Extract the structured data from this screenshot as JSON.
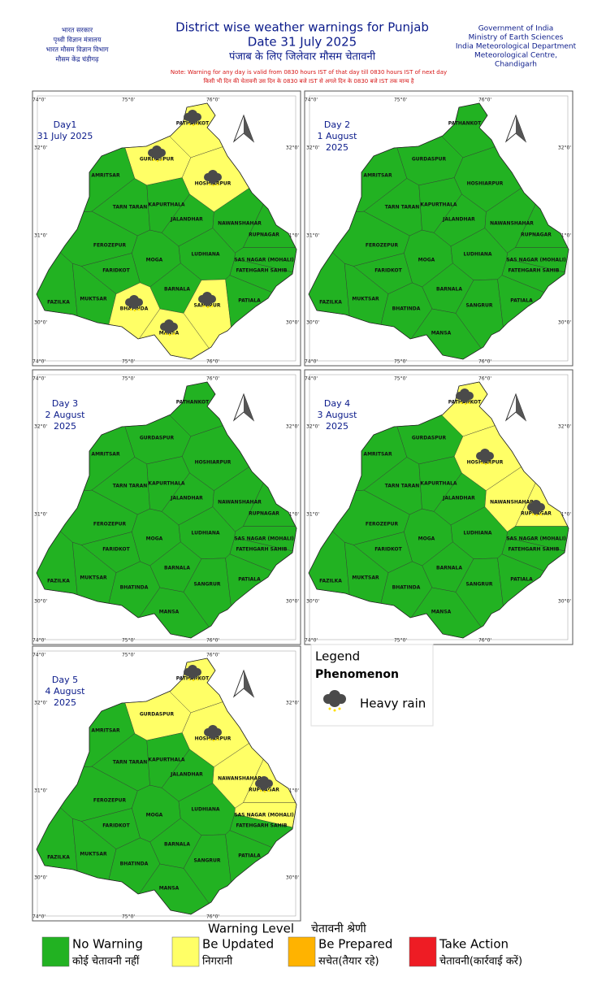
{
  "header": {
    "left": [
      "भारत सरकार",
      "पृथ्वी विज्ञान मंत्रालय",
      "भारत मौसम विज्ञान विभाग",
      "मौसम केंद्र चंडीगढ़"
    ],
    "title": [
      "District wise weather warnings for Punjab",
      "Date 31 July 2025",
      "पंजाब के लिए जिलेवार मौसम चेतावनी"
    ],
    "notes": [
      "Note: Warning for any day is valid from 0830 hours IST of that day till 0830 hours IST of next day",
      "किसी भी दिन की चेतावनी उस दिन के 0830 बजे IST से अगले दिन के 0830 बजे IST तक मान्य है"
    ],
    "right": [
      "Government of India",
      "Ministry of Earth Sciences",
      "India Meteorological Department",
      "Meteorological Centre,",
      "Chandigarh"
    ]
  },
  "districts": [
    "PATHANKOT",
    "GURDASPUR",
    "AMRITSAR",
    "HOSHIARPUR",
    "TARN TARAN",
    "KAPURTHALA",
    "JALANDHAR",
    "NAWANSHAHAR",
    "RUPNAGAR",
    "FEROZEPUR",
    "MOGA",
    "LUDHIANA",
    "SAS NAGAR (MOHALI)",
    "FATEHGARH SAHIB",
    "FARIDKOT",
    "BARNALA",
    "FAZILKA",
    "MUKTSAR",
    "BHATINDA",
    "SANGRUR",
    "PATIALA",
    "MANSA"
  ],
  "graticule": {
    "lon": [
      "74°0'",
      "75°0'",
      "76°0'"
    ],
    "lat": [
      "32°0'",
      "31°0'",
      "30°0'"
    ]
  },
  "panels": [
    {
      "title": [
        "Day1",
        "31 July 2025"
      ],
      "district_colors": [
        "#ffff66",
        "#ffff66",
        "#22b222",
        "#ffff66",
        "#22b222",
        "#22b222",
        "#22b222",
        "#22b222",
        "#22b222",
        "#22b222",
        "#22b222",
        "#22b222",
        "#22b222",
        "#22b222",
        "#22b222",
        "#22b222",
        "#22b222",
        "#22b222",
        "#ffff66",
        "#ffff66",
        "#22b222",
        "#ffff66"
      ],
      "heavy_rain": [
        true,
        true,
        false,
        true,
        false,
        false,
        false,
        false,
        false,
        false,
        false,
        false,
        false,
        false,
        false,
        false,
        false,
        false,
        true,
        true,
        false,
        true
      ]
    },
    {
      "title": [
        "Day 2",
        "1 August",
        "2025"
      ],
      "district_colors": [
        "#22b222",
        "#22b222",
        "#22b222",
        "#22b222",
        "#22b222",
        "#22b222",
        "#22b222",
        "#22b222",
        "#22b222",
        "#22b222",
        "#22b222",
        "#22b222",
        "#22b222",
        "#22b222",
        "#22b222",
        "#22b222",
        "#22b222",
        "#22b222",
        "#22b222",
        "#22b222",
        "#22b222",
        "#22b222"
      ],
      "heavy_rain": [
        false,
        false,
        false,
        false,
        false,
        false,
        false,
        false,
        false,
        false,
        false,
        false,
        false,
        false,
        false,
        false,
        false,
        false,
        false,
        false,
        false,
        false
      ]
    },
    {
      "title": [
        "Day 3",
        "2 August",
        "2025"
      ],
      "district_colors": [
        "#22b222",
        "#22b222",
        "#22b222",
        "#22b222",
        "#22b222",
        "#22b222",
        "#22b222",
        "#22b222",
        "#22b222",
        "#22b222",
        "#22b222",
        "#22b222",
        "#22b222",
        "#22b222",
        "#22b222",
        "#22b222",
        "#22b222",
        "#22b222",
        "#22b222",
        "#22b222",
        "#22b222",
        "#22b222"
      ],
      "heavy_rain": [
        false,
        false,
        false,
        false,
        false,
        false,
        false,
        false,
        false,
        false,
        false,
        false,
        false,
        false,
        false,
        false,
        false,
        false,
        false,
        false,
        false,
        false
      ]
    },
    {
      "title": [
        "Day 4",
        "3 August",
        "2025"
      ],
      "district_colors": [
        "#ffff66",
        "#22b222",
        "#22b222",
        "#ffff66",
        "#22b222",
        "#22b222",
        "#22b222",
        "#ffff66",
        "#ffff66",
        "#22b222",
        "#22b222",
        "#22b222",
        "#22b222",
        "#22b222",
        "#22b222",
        "#22b222",
        "#22b222",
        "#22b222",
        "#22b222",
        "#22b222",
        "#22b222",
        "#22b222"
      ],
      "heavy_rain": [
        true,
        false,
        false,
        true,
        false,
        false,
        false,
        false,
        true,
        false,
        false,
        false,
        false,
        false,
        false,
        false,
        false,
        false,
        false,
        false,
        false,
        false
      ]
    },
    {
      "title": [
        "Day 5",
        "4 August",
        "2025"
      ],
      "district_colors": [
        "#ffff66",
        "#ffff66",
        "#22b222",
        "#ffff66",
        "#22b222",
        "#22b222",
        "#22b222",
        "#ffff66",
        "#ffff66",
        "#22b222",
        "#22b222",
        "#22b222",
        "#ffff66",
        "#22b222",
        "#22b222",
        "#22b222",
        "#22b222",
        "#22b222",
        "#22b222",
        "#22b222",
        "#22b222",
        "#22b222"
      ],
      "heavy_rain": [
        true,
        false,
        false,
        true,
        false,
        false,
        false,
        false,
        true,
        false,
        false,
        false,
        false,
        false,
        false,
        false,
        false,
        false,
        false,
        false,
        false,
        false
      ]
    }
  ],
  "legend": {
    "title": "Legend",
    "subtitle": "Phenomenon",
    "item": "Heavy rain"
  },
  "warning_levels": {
    "title": "Warning Level",
    "title_hi": "चेतावनी श्रेणी",
    "levels": [
      {
        "color": "#22b222",
        "label": "No Warning",
        "label_hi": "कोई चेतावनी नहीं"
      },
      {
        "color": "#ffff66",
        "label": "Be Updated",
        "label_hi": "निगरानी"
      },
      {
        "color": "#ffb300",
        "label": "Be Prepared",
        "label_hi": "सचेत(तैयार रहे)"
      },
      {
        "color": "#ee1c24",
        "label": "Take Action",
        "label_hi": "चेतावनी(कार्रवाई करें)"
      }
    ]
  }
}
